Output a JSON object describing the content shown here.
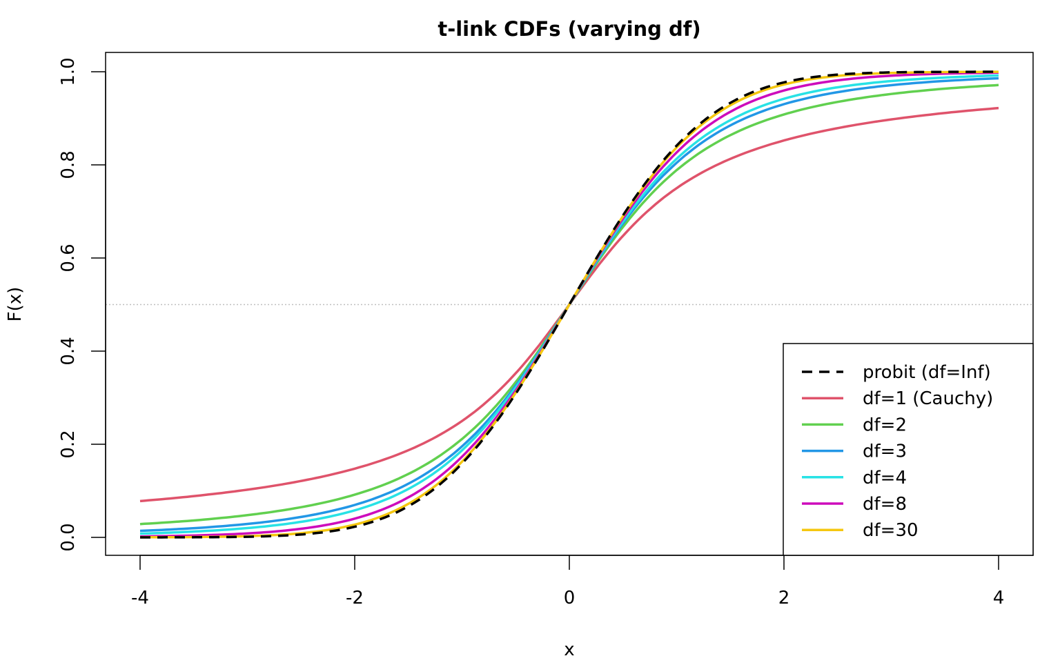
{
  "chart_data": {
    "type": "line",
    "title": "t-link CDFs (varying df)",
    "xlabel": "x",
    "ylabel": "F(x)",
    "xlim": [
      -4,
      4
    ],
    "ylim": [
      0,
      1
    ],
    "xticks": [
      "-4",
      "-2",
      "0",
      "2",
      "4"
    ],
    "yticks": [
      "0.0",
      "0.2",
      "0.4",
      "0.6",
      "0.8",
      "1.0"
    ],
    "reference_line": {
      "y": 0.5,
      "style": "dotted",
      "color": "#BEBEBE"
    },
    "legend_position": "bottom-right",
    "x": [
      -4,
      -2,
      0,
      2,
      4
    ],
    "series": [
      {
        "name": "probit (df=Inf)",
        "df": null,
        "color": "#000000",
        "dash": true,
        "values": [
          3e-05,
          0.023,
          0.5,
          0.977,
          0.99997
        ]
      },
      {
        "name": "df=1 (Cauchy)",
        "df": 1,
        "color": "#DF536B",
        "dash": false,
        "values": [
          0.078,
          0.148,
          0.5,
          0.852,
          0.922
        ]
      },
      {
        "name": "df=2",
        "df": 2,
        "color": "#61D04F",
        "dash": false,
        "values": [
          0.029,
          0.092,
          0.5,
          0.908,
          0.971
        ]
      },
      {
        "name": "df=3",
        "df": 3,
        "color": "#2297E6",
        "dash": false,
        "values": [
          0.014,
          0.07,
          0.5,
          0.93,
          0.986
        ]
      },
      {
        "name": "df=4",
        "df": 4,
        "color": "#28E2E5",
        "dash": false,
        "values": [
          0.008,
          0.058,
          0.5,
          0.942,
          0.992
        ]
      },
      {
        "name": "df=8",
        "df": 8,
        "color": "#CD0BBC",
        "dash": false,
        "values": [
          0.002,
          0.04,
          0.5,
          0.96,
          0.998
        ]
      },
      {
        "name": "df=30",
        "df": 30,
        "color": "#F5C710",
        "dash": false,
        "values": [
          0.0002,
          0.027,
          0.5,
          0.973,
          0.9998
        ]
      }
    ]
  }
}
